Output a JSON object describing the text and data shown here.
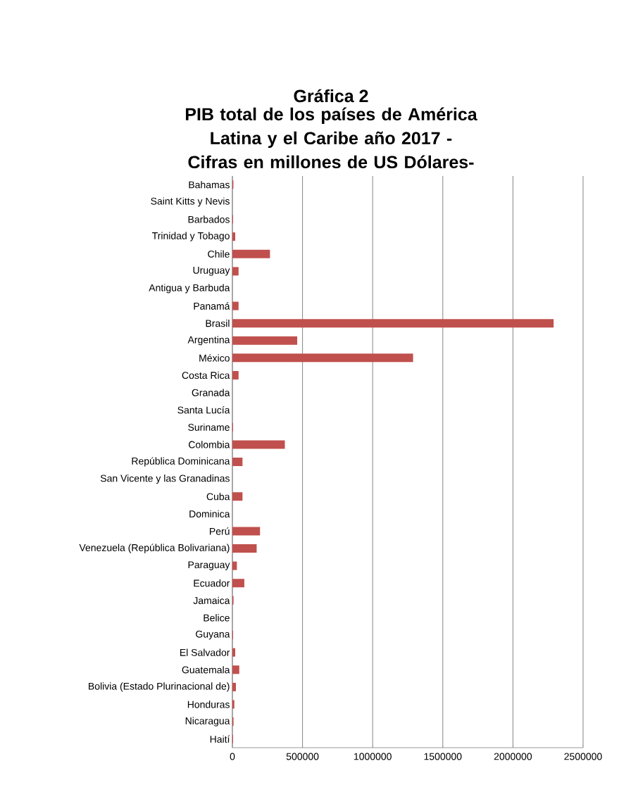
{
  "chart_data": {
    "type": "bar",
    "orientation": "horizontal",
    "title": "Gráfica 2",
    "subtitle": "PIB  total de los países de América Latina y el Caribe año 2017 -Cifras en millones de US Dólares-",
    "categories": [
      "Bahamas",
      "Saint Kitts y Nevis",
      "Barbados",
      "Trinidad y Tobago",
      "Chile",
      "Uruguay",
      "Antigua y Barbuda",
      "Panamá",
      "Brasil",
      "Argentina",
      "México",
      "Costa Rica",
      "Granada",
      "Santa Lucía",
      "Suriname",
      "Colombia",
      "República Dominicana",
      "San Vicente y las Granadinas",
      "Cuba",
      "Dominica",
      "Perú",
      "Venezuela (República Bolivariana)",
      "Paraguay",
      "Ecuador",
      "Jamaica",
      "Belice",
      "Guyana",
      "El Salvador",
      "Guatemala",
      "Bolivia (Estado Plurinacional de)",
      "Honduras",
      "Nicaragua",
      "Haití"
    ],
    "values": [
      7000,
      null,
      5000,
      20000,
      268000,
      44000,
      null,
      44000,
      2290000,
      462000,
      1288000,
      44000,
      null,
      null,
      5000,
      374000,
      72000,
      null,
      72000,
      null,
      197000,
      173000,
      32000,
      85000,
      8000,
      null,
      5000,
      20000,
      49000,
      25000,
      14000,
      8000,
      5000
    ],
    "color": "#c0504d",
    "xlim": [
      0,
      2500000
    ],
    "xticks": [
      0,
      500000,
      1000000,
      1500000,
      2000000,
      2500000
    ],
    "grid": "x"
  }
}
